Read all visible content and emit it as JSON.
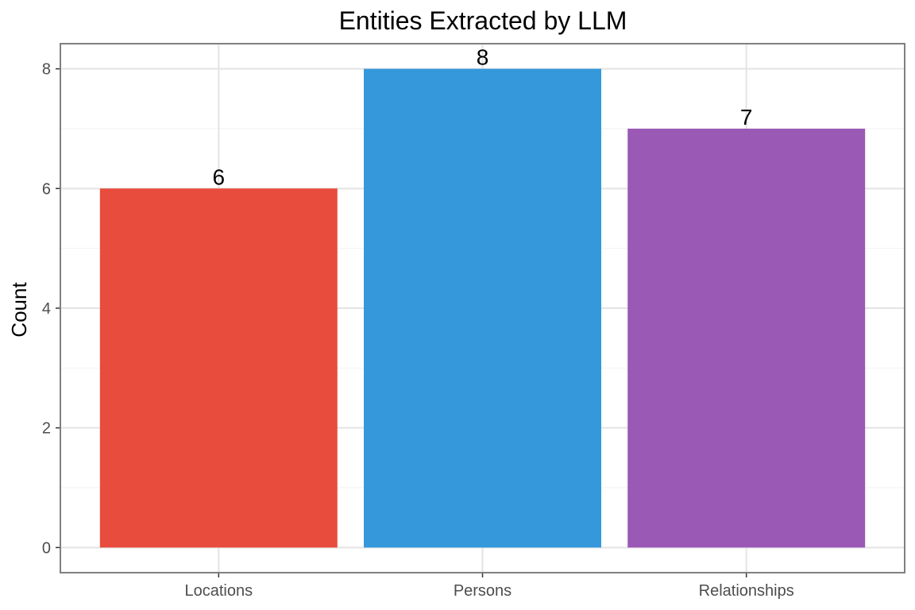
{
  "chart_data": {
    "type": "bar",
    "title": "Entities Extracted by LLM",
    "xlabel": "",
    "ylabel": "Count",
    "categories": [
      "Locations",
      "Persons",
      "Relationships"
    ],
    "values": [
      6,
      8,
      7
    ],
    "data_labels": [
      "6",
      "8",
      "7"
    ],
    "colors": [
      "#E74C3C",
      "#3498DB",
      "#9B59B6"
    ],
    "ylim": [
      -0.42,
      8.42
    ],
    "yticks": [
      0,
      2,
      4,
      6,
      8
    ],
    "ytick_labels": [
      "0",
      "2",
      "4",
      "6",
      "8"
    ],
    "grid": true,
    "legend": "none"
  }
}
